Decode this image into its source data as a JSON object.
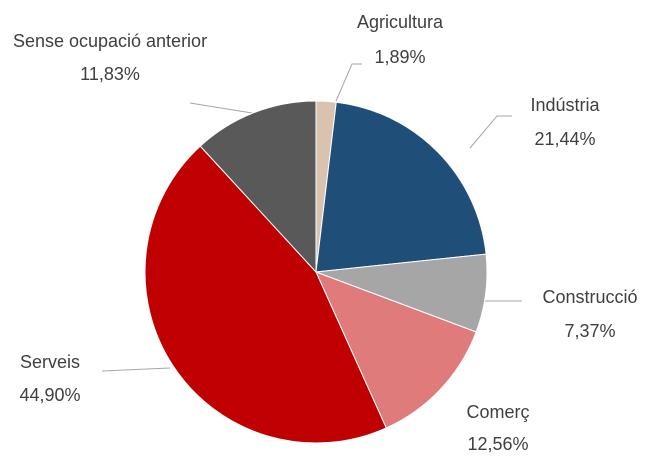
{
  "chart_data": {
    "type": "pie",
    "categories": [
      "Agricultura",
      "Indústria",
      "Construcció",
      "Comerç",
      "Serveis",
      "Sense ocupació anterior"
    ],
    "values": [
      1.89,
      21.44,
      7.37,
      12.56,
      44.9,
      11.83
    ],
    "value_labels": [
      "1,89%",
      "21,44%",
      "7,37%",
      "12,56%",
      "44,90%",
      "11,83%"
    ],
    "colors": [
      "#d9c3b0",
      "#1f4e79",
      "#a6a6a6",
      "#e07b7b",
      "#c00000",
      "#595959"
    ]
  }
}
